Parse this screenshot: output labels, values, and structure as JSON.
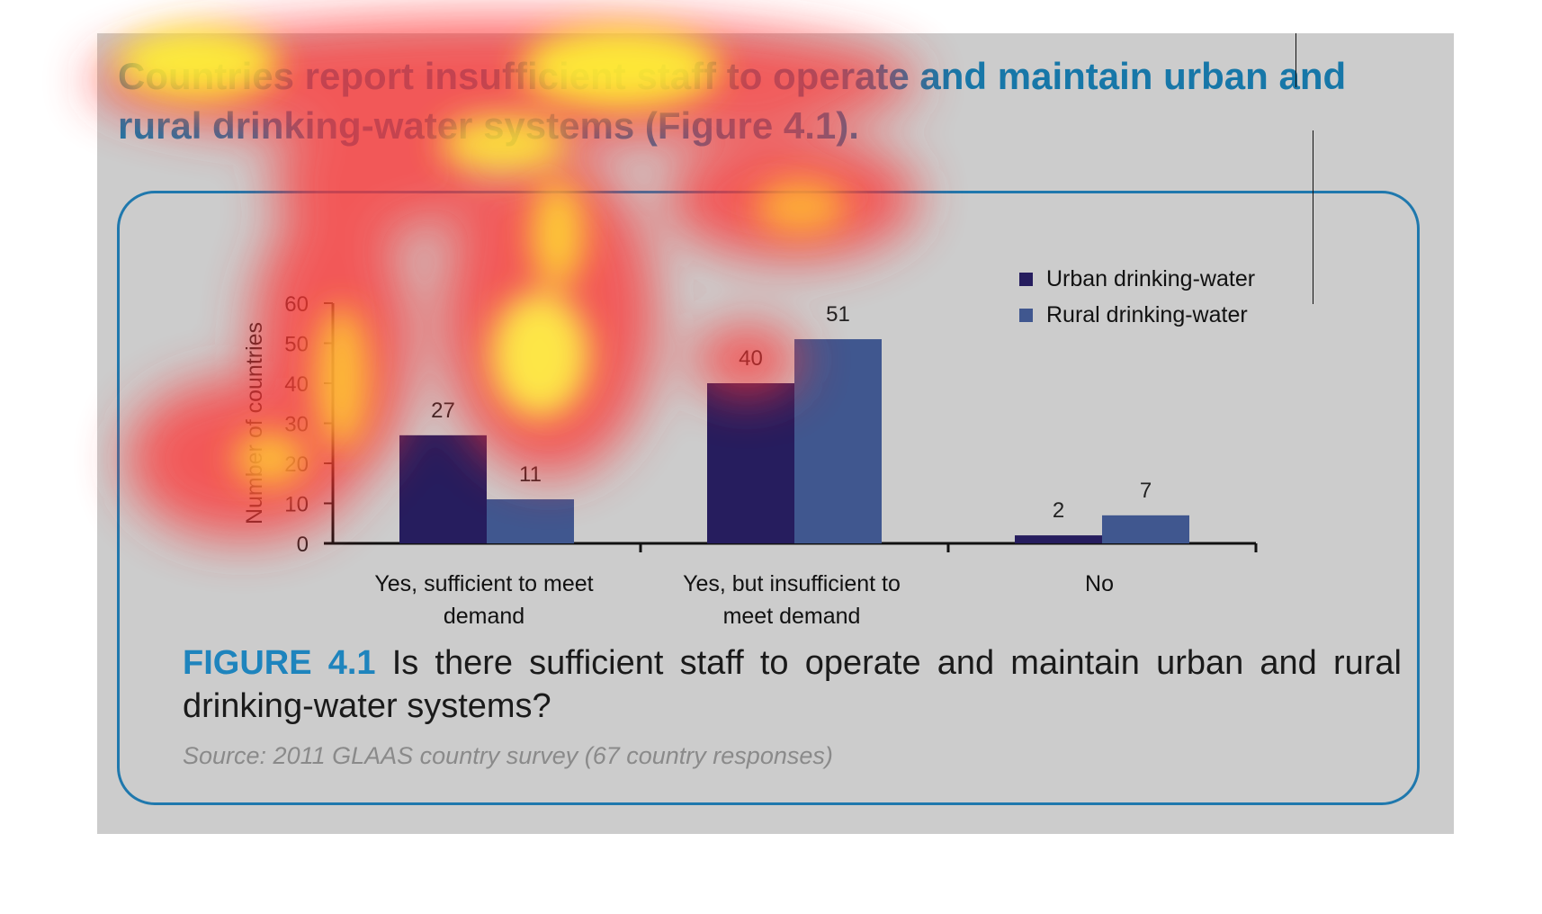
{
  "headline": "Countries report insufficient staff to operate and maintain urban and rural drinking-water systems (Figure 4.1).",
  "caption": {
    "label": "FIGURE 4.1",
    "text": " Is there sufficient staff to operate and maintain urban and rural drinking-water systems?"
  },
  "source": "Source: 2011 GLAAS country survey (67 country responses)",
  "colors": {
    "urban": "#261d5e",
    "rural": "#40578f",
    "frame": "#1f78ad",
    "accent": "#1777a8"
  },
  "chart_data": {
    "type": "bar",
    "title": "",
    "xlabel": "",
    "ylabel": "Number of countries",
    "ylim": [
      0,
      60
    ],
    "yticks": [
      0,
      10,
      20,
      30,
      40,
      50,
      60
    ],
    "legend_position": "top-right",
    "categories": [
      [
        "Yes, sufficient to meet",
        "demand"
      ],
      [
        "Yes, but insufficient to",
        "meet demand"
      ],
      [
        "No"
      ]
    ],
    "series": [
      {
        "name": "Urban drinking-water",
        "values": [
          27,
          40,
          2
        ]
      },
      {
        "name": "Rural drinking-water",
        "values": [
          11,
          51,
          7
        ]
      }
    ]
  }
}
